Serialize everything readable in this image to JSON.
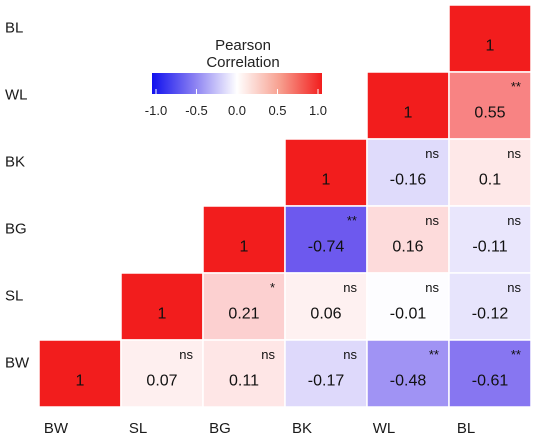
{
  "chart_data": {
    "type": "heatmap",
    "title": "",
    "xlabel": "",
    "ylabel": "",
    "variables": [
      "BW",
      "SL",
      "BG",
      "BK",
      "WL",
      "BL"
    ],
    "x_categories": [
      "BW",
      "SL",
      "BG",
      "BK",
      "WL",
      "BL"
    ],
    "y_categories_top_to_bottom": [
      "BL",
      "WL",
      "BK",
      "BG",
      "SL",
      "BW"
    ],
    "cells": [
      {
        "row": "BL",
        "col": "BL",
        "value": 1,
        "label": "1",
        "sig": ""
      },
      {
        "row": "WL",
        "col": "WL",
        "value": 1,
        "label": "1",
        "sig": ""
      },
      {
        "row": "WL",
        "col": "BL",
        "value": 0.55,
        "label": "0.55",
        "sig": "**"
      },
      {
        "row": "BK",
        "col": "BK",
        "value": 1,
        "label": "1",
        "sig": ""
      },
      {
        "row": "BK",
        "col": "WL",
        "value": -0.16,
        "label": "-0.16",
        "sig": "ns"
      },
      {
        "row": "BK",
        "col": "BL",
        "value": 0.1,
        "label": "0.1",
        "sig": "ns"
      },
      {
        "row": "BG",
        "col": "BG",
        "value": 1,
        "label": "1",
        "sig": ""
      },
      {
        "row": "BG",
        "col": "BK",
        "value": -0.74,
        "label": "-0.74",
        "sig": "**"
      },
      {
        "row": "BG",
        "col": "WL",
        "value": 0.16,
        "label": "0.16",
        "sig": "ns"
      },
      {
        "row": "BG",
        "col": "BL",
        "value": -0.11,
        "label": "-0.11",
        "sig": "ns"
      },
      {
        "row": "SL",
        "col": "SL",
        "value": 1,
        "label": "1",
        "sig": ""
      },
      {
        "row": "SL",
        "col": "BG",
        "value": 0.21,
        "label": "0.21",
        "sig": "*"
      },
      {
        "row": "SL",
        "col": "BK",
        "value": 0.06,
        "label": "0.06",
        "sig": "ns"
      },
      {
        "row": "SL",
        "col": "WL",
        "value": -0.01,
        "label": "-0.01",
        "sig": "ns"
      },
      {
        "row": "SL",
        "col": "BL",
        "value": -0.12,
        "label": "-0.12",
        "sig": "ns"
      },
      {
        "row": "BW",
        "col": "BW",
        "value": 1,
        "label": "1",
        "sig": ""
      },
      {
        "row": "BW",
        "col": "SL",
        "value": 0.07,
        "label": "0.07",
        "sig": "ns"
      },
      {
        "row": "BW",
        "col": "BG",
        "value": 0.11,
        "label": "0.11",
        "sig": "ns"
      },
      {
        "row": "BW",
        "col": "BK",
        "value": -0.17,
        "label": "-0.17",
        "sig": "ns"
      },
      {
        "row": "BW",
        "col": "WL",
        "value": -0.48,
        "label": "-0.48",
        "sig": "**"
      },
      {
        "row": "BW",
        "col": "BL",
        "value": -0.61,
        "label": "-0.61",
        "sig": "**"
      }
    ],
    "legend": {
      "title_line1": "Pearson",
      "title_line2": "Correlation",
      "range": [
        -1.0,
        1.0
      ],
      "ticks": [
        "-1.0",
        "-0.5",
        "0.0",
        "0.5",
        "1.0"
      ],
      "tick_values": [
        -1.0,
        -0.5,
        0.0,
        0.5,
        1.0
      ],
      "placement": "top-left"
    },
    "colors": {
      "negative": "#3a1fe8",
      "neutral": "#ffffff",
      "positive": "#f21d1d"
    },
    "grid": false
  }
}
